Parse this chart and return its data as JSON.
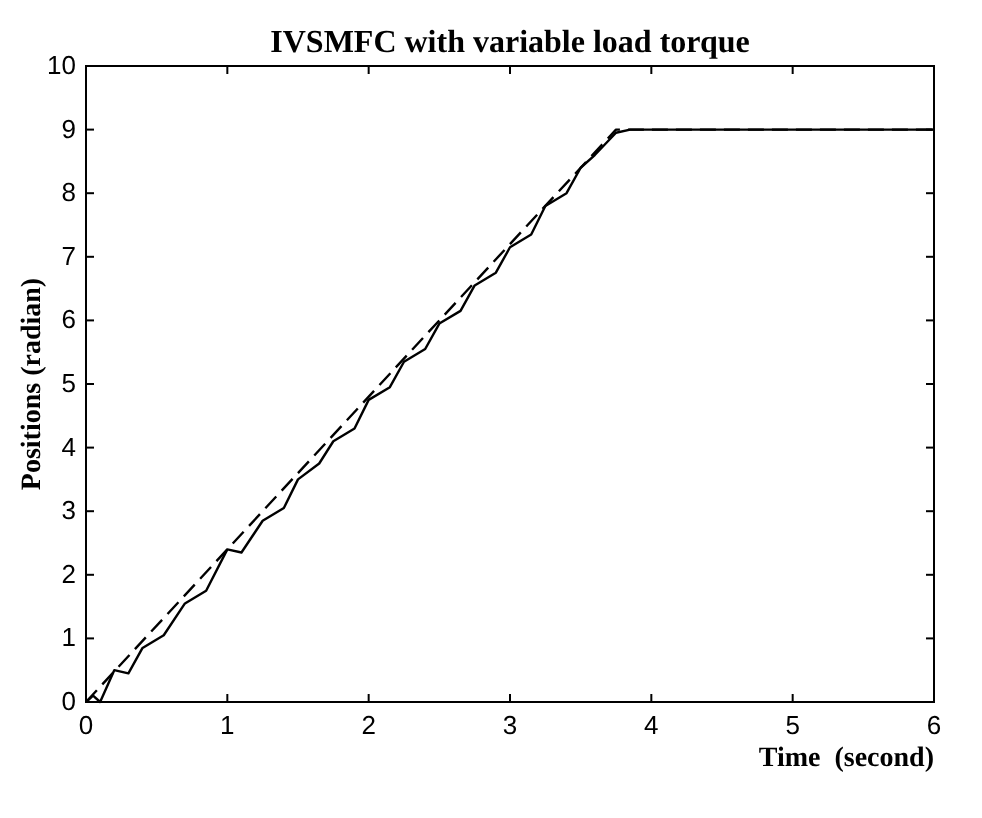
{
  "chart_data": {
    "type": "line",
    "title": "IVSMFC with variable load torque",
    "xlabel": "Time  (second)",
    "ylabel": "Positions (radian)",
    "xlim": [
      0,
      6
    ],
    "xticks": [
      0,
      1,
      2,
      3,
      4,
      5,
      6
    ],
    "ylim": [
      0,
      10
    ],
    "yticks": [
      0,
      1,
      2,
      3,
      4,
      5,
      6,
      7,
      8,
      9,
      10
    ],
    "grid": false,
    "series": [
      {
        "color": "#000000",
        "line_style": "dashed",
        "x": [
          0,
          3.75,
          6
        ],
        "values": [
          0,
          9,
          9
        ]
      },
      {
        "color": "#000000",
        "line_style": "solid",
        "x": [
          0,
          0.05,
          0.1,
          0.2,
          0.3,
          0.4,
          0.55,
          0.7,
          0.85,
          1.0,
          1.1,
          1.25,
          1.4,
          1.5,
          1.65,
          1.75,
          1.9,
          2.0,
          2.15,
          2.25,
          2.4,
          2.5,
          2.65,
          2.75,
          2.9,
          3.0,
          3.15,
          3.25,
          3.4,
          3.5,
          3.6,
          3.75,
          3.85,
          6
        ],
        "values": [
          0,
          0.1,
          0,
          0.5,
          0.45,
          0.85,
          1.05,
          1.55,
          1.75,
          2.4,
          2.35,
          2.85,
          3.05,
          3.5,
          3.75,
          4.1,
          4.3,
          4.75,
          4.95,
          5.35,
          5.55,
          5.95,
          6.15,
          6.55,
          6.75,
          7.15,
          7.35,
          7.8,
          8.0,
          8.4,
          8.6,
          8.95,
          9.0,
          9.0
        ]
      }
    ]
  }
}
